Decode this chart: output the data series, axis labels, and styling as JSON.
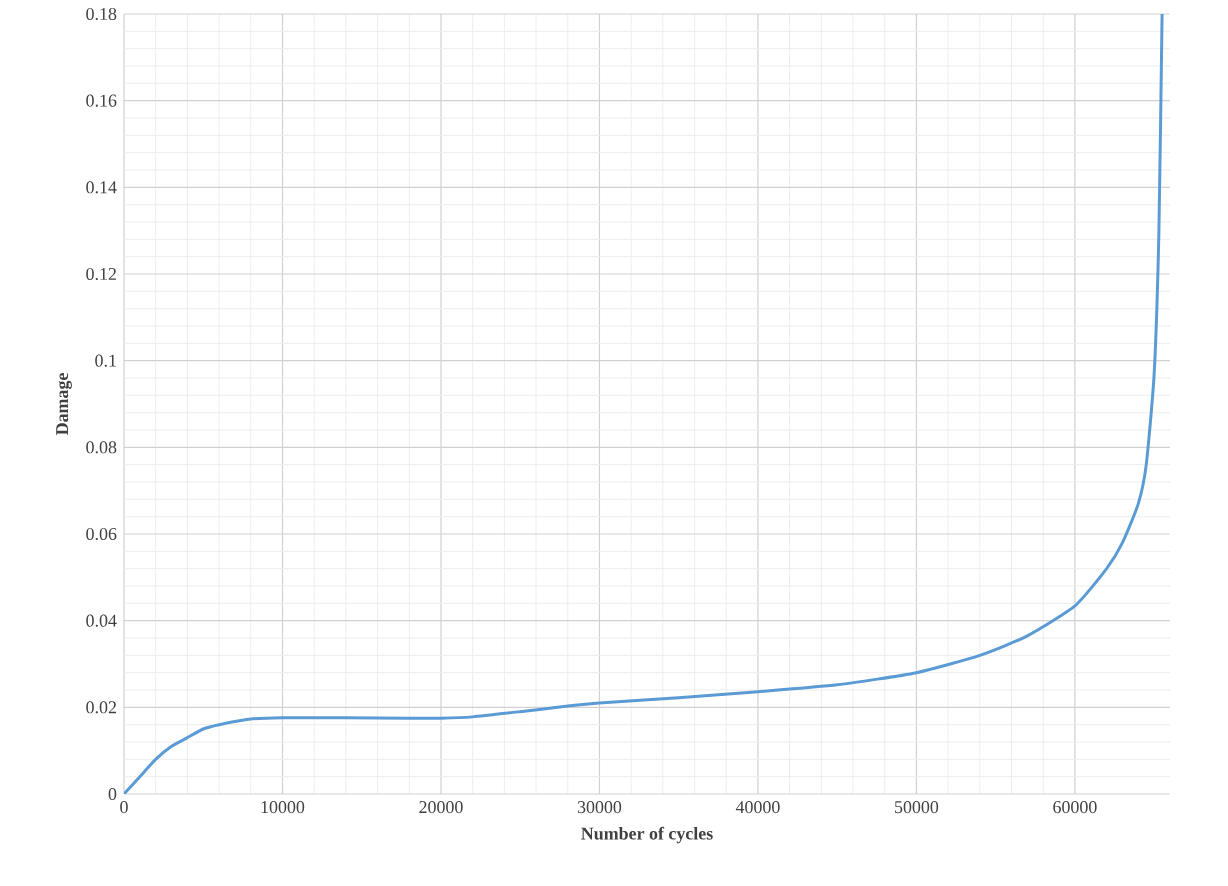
{
  "chart_data": {
    "type": "line",
    "xlabel": "Number of cycles",
    "ylabel": "Damage",
    "x": [
      0,
      1000,
      2000,
      3000,
      4000,
      5000,
      6000,
      8000,
      10000,
      14000,
      18000,
      20000,
      22000,
      25000,
      28000,
      30000,
      35000,
      40000,
      45000,
      50000,
      54000,
      57000,
      60000,
      62000,
      63000,
      64000,
      64500,
      65000,
      65300,
      65500
    ],
    "series": [
      {
        "color": "#5b9bd5",
        "values": [
          0,
          0.004,
          0.008,
          0.011,
          0.013,
          0.015,
          0.016,
          0.0173,
          0.0176,
          0.0176,
          0.0175,
          0.0175,
          0.0178,
          0.019,
          0.0203,
          0.021,
          0.0222,
          0.0236,
          0.0252,
          0.028,
          0.032,
          0.0365,
          0.0434,
          0.052,
          0.058,
          0.067,
          0.076,
          0.097,
          0.13,
          0.18
        ]
      }
    ],
    "xlim": [
      0,
      66000
    ],
    "ylim": [
      0,
      0.18
    ],
    "xticks": [
      0,
      10000,
      20000,
      30000,
      40000,
      50000,
      60000
    ],
    "yticks": [
      0,
      0.02,
      0.04,
      0.06,
      0.08,
      0.1,
      0.12,
      0.14,
      0.16,
      0.18
    ],
    "grid": true,
    "marker": "none",
    "line_style": "solid"
  }
}
